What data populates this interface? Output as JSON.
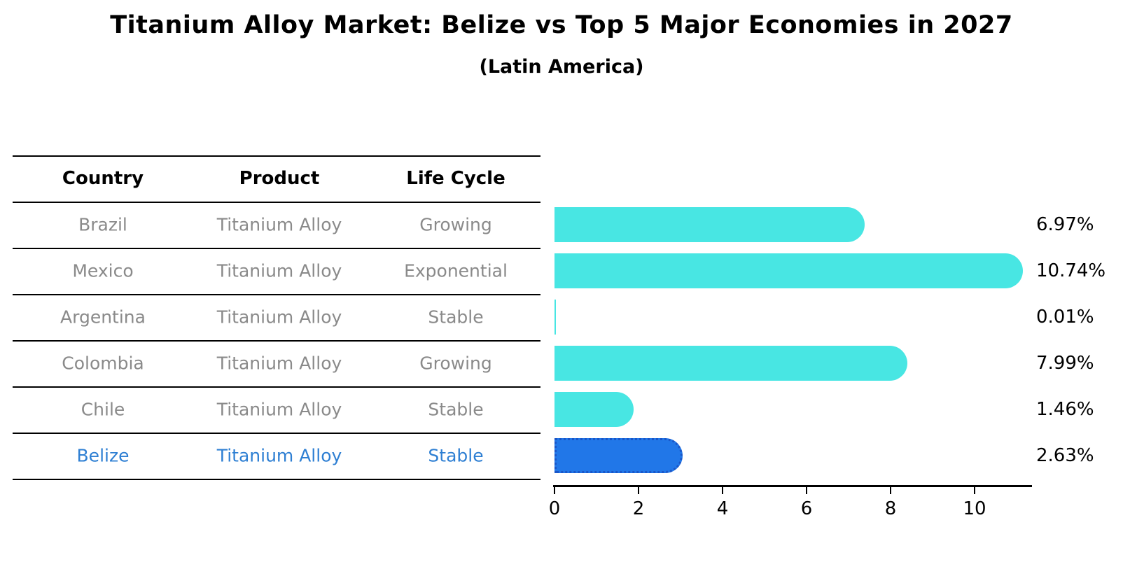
{
  "chart": {
    "title": "Titanium Alloy Market: Belize vs Top 5 Major Economies in 2027",
    "subtitle": "(Latin America)"
  },
  "table": {
    "columns": [
      "Country",
      "Product",
      "Life Cycle"
    ],
    "rows": [
      {
        "country": "Brazil",
        "product": "Titanium Alloy",
        "life_cycle": "Growing",
        "highlight": false
      },
      {
        "country": "Mexico",
        "product": "Titanium Alloy",
        "life_cycle": "Exponential",
        "highlight": false
      },
      {
        "country": "Argentina",
        "product": "Titanium Alloy",
        "life_cycle": "Stable",
        "highlight": false
      },
      {
        "country": "Colombia",
        "product": "Titanium Alloy",
        "life_cycle": "Growing",
        "highlight": false
      },
      {
        "country": "Chile",
        "product": "Titanium Alloy",
        "life_cycle": "Stable",
        "highlight": false
      },
      {
        "country": "Belize",
        "product": "Titanium Alloy",
        "life_cycle": "Stable",
        "highlight": true
      }
    ]
  },
  "chart_data": {
    "type": "bar",
    "orientation": "horizontal",
    "title": "Titanium Alloy Market: Belize vs Top 5 Major Economies in 2027 (Latin America)",
    "categories": [
      "Brazil",
      "Mexico",
      "Argentina",
      "Colombia",
      "Chile",
      "Belize"
    ],
    "values": [
      6.97,
      10.74,
      0.01,
      7.99,
      1.46,
      2.63
    ],
    "value_labels": [
      "6.97%",
      "10.74%",
      "0.01%",
      "7.99%",
      "1.46%",
      "2.63%"
    ],
    "highlight_category": "Belize",
    "x_ticks": [
      0,
      2,
      4,
      6,
      8,
      10
    ],
    "xlim": [
      0,
      11.3
    ],
    "grid": false,
    "legend": "none",
    "xlabel": "",
    "ylabel": "",
    "colors": {
      "bar": "#48E6E3",
      "highlight_bar": "#2177E8",
      "highlight_border": "#1A56C8",
      "highlight_text": "#2E7FD3",
      "text_gray": "#8A8A8A",
      "axis": "#000000"
    }
  }
}
